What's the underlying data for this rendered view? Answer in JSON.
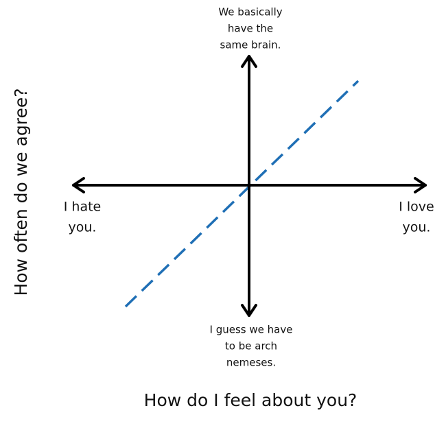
{
  "labels": {
    "top": [
      "We basically",
      "have the",
      "same brain."
    ],
    "bottom": [
      "I guess we have",
      "to be arch",
      "nemeses."
    ],
    "left": [
      "I hate",
      "you."
    ],
    "right": [
      "I love",
      "you."
    ]
  },
  "x_axis_title": "How do I feel about you?",
  "y_axis_title": "How often do we agree?"
}
